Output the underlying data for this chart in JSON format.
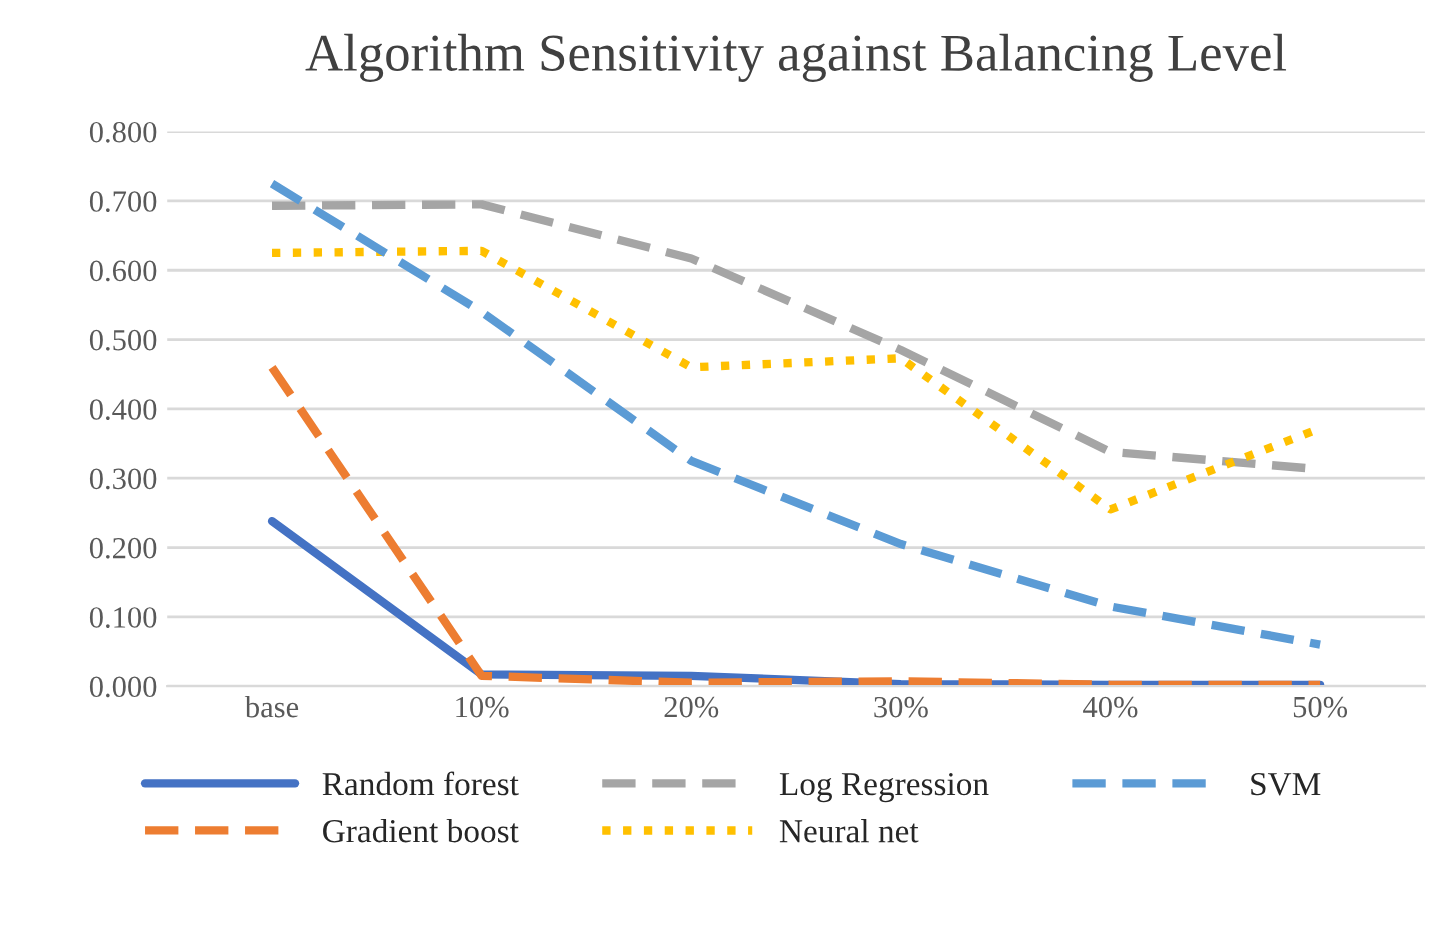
{
  "chart_data": {
    "type": "line",
    "title": "Algorithm Sensitivity against Balancing Level",
    "categories": [
      "base",
      "10%",
      "20%",
      "30%",
      "40%",
      "50%"
    ],
    "series": [
      {
        "name": "Random forest",
        "color": "#4472c4",
        "line_style": "solid",
        "values": [
          0.238,
          0.017,
          0.015,
          0.003,
          0.002,
          0.002
        ]
      },
      {
        "name": "Gradient boost",
        "color": "#ed7d31",
        "line_style": "dashed",
        "values": [
          0.46,
          0.015,
          0.005,
          0.007,
          0.002,
          0.002
        ]
      },
      {
        "name": "Log Regression",
        "color": "#a5a5a5",
        "line_style": "dashed",
        "values": [
          0.693,
          0.695,
          0.617,
          0.485,
          0.338,
          0.313
        ]
      },
      {
        "name": "Neural net",
        "color": "#ffc000",
        "line_style": "dotted",
        "values": [
          0.625,
          0.628,
          0.46,
          0.473,
          0.255,
          0.372
        ]
      },
      {
        "name": "SVM",
        "color": "#5b9bd5",
        "line_style": "dashed",
        "values": [
          0.725,
          0.54,
          0.325,
          0.205,
          0.115,
          0.06
        ]
      }
    ],
    "ylim": [
      0,
      0.8
    ],
    "yticks": [
      {
        "value": 0,
        "label": "0.000"
      },
      {
        "value": 0.1,
        "label": "0.100"
      },
      {
        "value": 0.2,
        "label": "0.200"
      },
      {
        "value": 0.3,
        "label": "0.300"
      },
      {
        "value": 0.4,
        "label": "0.400"
      },
      {
        "value": 0.5,
        "label": "0.500"
      },
      {
        "value": 0.6,
        "label": "0.600"
      },
      {
        "value": 0.7,
        "label": "0.700"
      },
      {
        "value": 0.8,
        "label": "0.800"
      }
    ],
    "grid": "y",
    "legend": "bottom",
    "marker": "none"
  }
}
